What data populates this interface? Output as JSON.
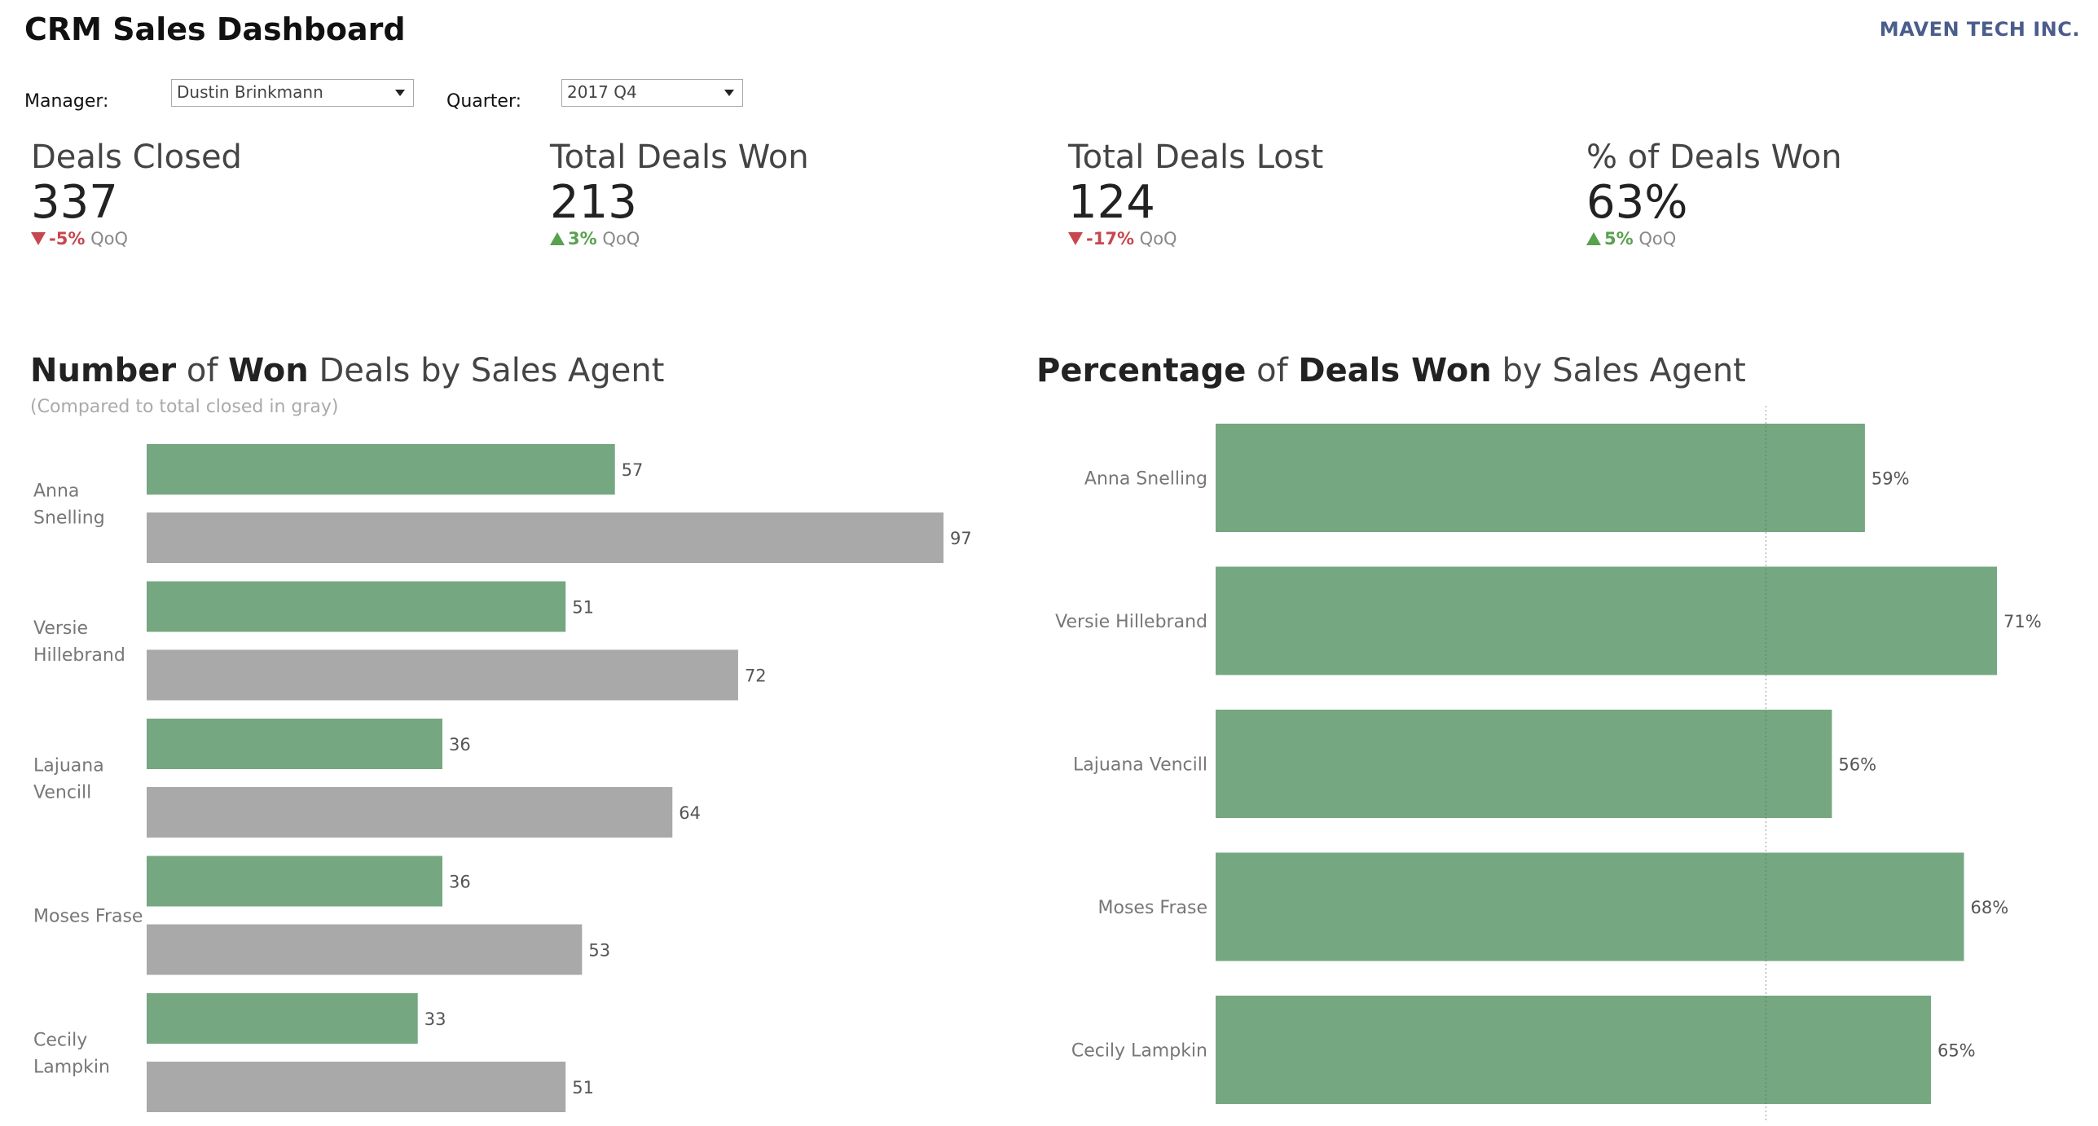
{
  "header": {
    "title": "CRM Sales Dashboard",
    "logo": "MAVEN TECH INC."
  },
  "filters": {
    "manager_label": "Manager:",
    "manager_value": "Dustin Brinkmann",
    "quarter_label": "Quarter:",
    "quarter_value": "2017 Q4"
  },
  "kpis": [
    {
      "title": "Deals Closed",
      "value": "337",
      "change": "-5%",
      "direction": "down",
      "suffix": "QoQ"
    },
    {
      "title": "Total Deals Won",
      "value": "213",
      "change": "3%",
      "direction": "up",
      "suffix": "QoQ"
    },
    {
      "title": "Total Deals Lost",
      "value": "124",
      "change": "-17%",
      "direction": "down",
      "suffix": "QoQ"
    },
    {
      "title": "% of Deals Won",
      "value": "63%",
      "change": "5%",
      "direction": "up",
      "suffix": "QoQ"
    }
  ],
  "colors": {
    "green": "#75a780",
    "gray": "#a9a9a9",
    "down": "#c8474e",
    "up": "#59a14f",
    "logo": "#4a5d8c"
  },
  "chart_data": [
    {
      "type": "bar",
      "orientation": "horizontal",
      "title": {
        "a": "Number",
        "b": " of ",
        "c": "Won",
        "d": " Deals by Sales Agent"
      },
      "subtitle": "(Compared to total closed in gray)",
      "categories": [
        [
          "Anna",
          "Snelling"
        ],
        [
          "Versie",
          "Hillebrand"
        ],
        [
          "Lajuana",
          "Vencill"
        ],
        [
          "Moses Frase"
        ],
        [
          "Cecily",
          "Lampkin"
        ]
      ],
      "series": [
        {
          "values": [
            57,
            51,
            36,
            36,
            33
          ],
          "color": "#75a780"
        },
        {
          "values": [
            97,
            72,
            64,
            53,
            51
          ],
          "color": "#a9a9a9"
        }
      ],
      "xlim": [
        0,
        97
      ]
    },
    {
      "type": "bar",
      "orientation": "horizontal",
      "title": {
        "a": "Percentage",
        "b": " of ",
        "c": "Deals Won",
        "d": " by Sales Agent"
      },
      "categories": [
        "Anna Snelling",
        "Versie Hillebrand",
        "Lajuana Vencill",
        "Moses Frase",
        "Cecily Lampkin"
      ],
      "values": [
        59,
        71,
        56,
        68,
        65
      ],
      "value_labels": [
        "59%",
        "71%",
        "56%",
        "68%",
        "65%"
      ],
      "reference_line": 50,
      "xlim": [
        0,
        71
      ]
    }
  ]
}
